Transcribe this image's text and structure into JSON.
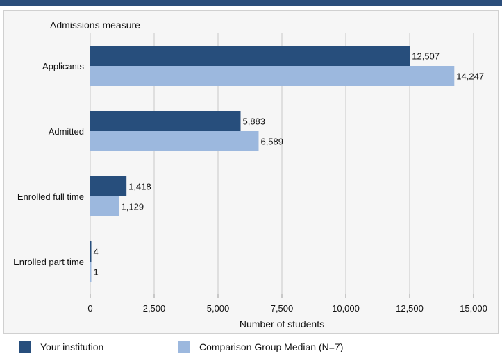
{
  "colors": {
    "top_bar": "#2b4e7b",
    "panel_bg": "#f6f6f6",
    "your_institution": "#274e7c",
    "comparison": "#9cb8de",
    "grid": "#c8c8c8"
  },
  "chart_data": {
    "type": "bar",
    "orientation": "horizontal",
    "y_axis_title": "Admissions measure",
    "xlabel": "Number of students",
    "categories": [
      "Applicants",
      "Admitted",
      "Enrolled full time",
      "Enrolled part time"
    ],
    "series": [
      {
        "name": "Your institution",
        "color": "#274e7c",
        "values": [
          12507,
          5883,
          1418,
          4
        ],
        "labels": [
          "12,507",
          "5,883",
          "1,418",
          "4"
        ]
      },
      {
        "name": "Comparison Group Median (N=7)",
        "color": "#9cb8de",
        "values": [
          14247,
          6589,
          1129,
          1
        ],
        "labels": [
          "14,247",
          "6,589",
          "1,129",
          "1"
        ]
      }
    ],
    "xlim": [
      0,
      15000
    ],
    "xticks": [
      0,
      2500,
      5000,
      7500,
      10000,
      12500,
      15000
    ],
    "xtick_labels": [
      "0",
      "2,500",
      "5,000",
      "7,500",
      "10,000",
      "12,500",
      "15,000"
    ],
    "grid": true,
    "legend_position": "bottom"
  },
  "legend": {
    "items": [
      {
        "label": "Your institution",
        "color": "#274e7c"
      },
      {
        "label": "Comparison Group Median (N=7)",
        "color": "#9cb8de"
      }
    ]
  }
}
